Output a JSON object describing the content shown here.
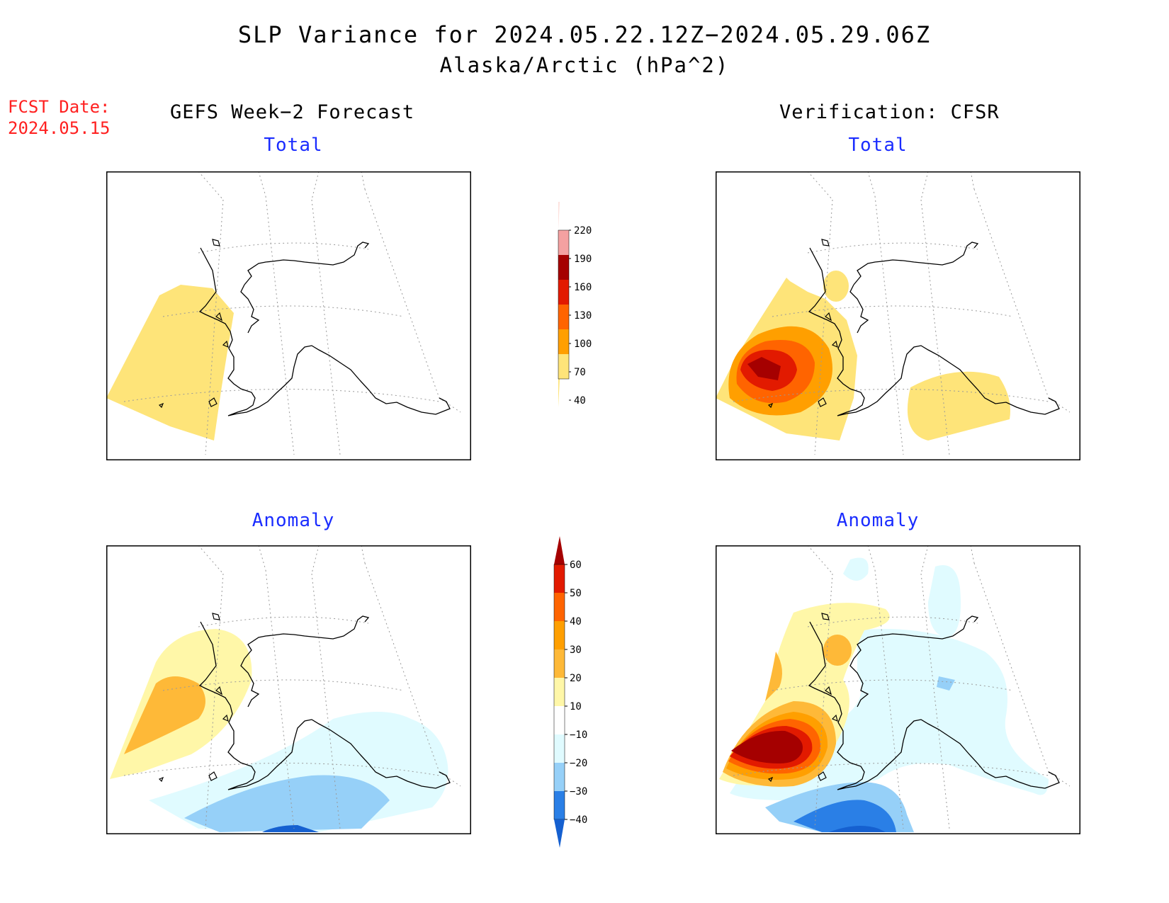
{
  "title": "SLP Variance for 2024.05.22.12Z−2024.05.29.06Z",
  "subtitle": "Alaska/Arctic (hPa^2)",
  "fcst": {
    "label": "FCST Date:",
    "value": "2024.05.15"
  },
  "left_heading": "GEFS Week−2 Forecast",
  "right_heading": "Verification: CFSR",
  "panels": {
    "forecast_total": {
      "title": "Total"
    },
    "verification_total": {
      "title": "Total"
    },
    "forecast_anomaly": {
      "title": "Anomaly"
    },
    "verification_anomaly": {
      "title": "Anomaly"
    }
  },
  "colorbar_total": {
    "labels": [
      "220",
      "190",
      "160",
      "130",
      "100",
      "70",
      "40"
    ],
    "colors": [
      "#fde0dc",
      "#f4a1a1",
      "#a50000",
      "#e21a00",
      "#ff6400",
      "#ff9f00",
      "#fee479"
    ]
  },
  "colorbar_anomaly": {
    "labels": [
      "60",
      "50",
      "40",
      "30",
      "20",
      "10",
      "−10",
      "−20",
      "−30",
      "−40"
    ],
    "colors": [
      "#a50000",
      "#e21a00",
      "#ff6400",
      "#ff9f00",
      "#feb938",
      "#fff7a8",
      "#ffffff",
      "#e0fbff",
      "#96d0f8",
      "#2a7fe6",
      "#1560d0"
    ]
  },
  "colors": {
    "title_blue": "#1a2cff",
    "fcst_red": "#ff2020"
  }
}
